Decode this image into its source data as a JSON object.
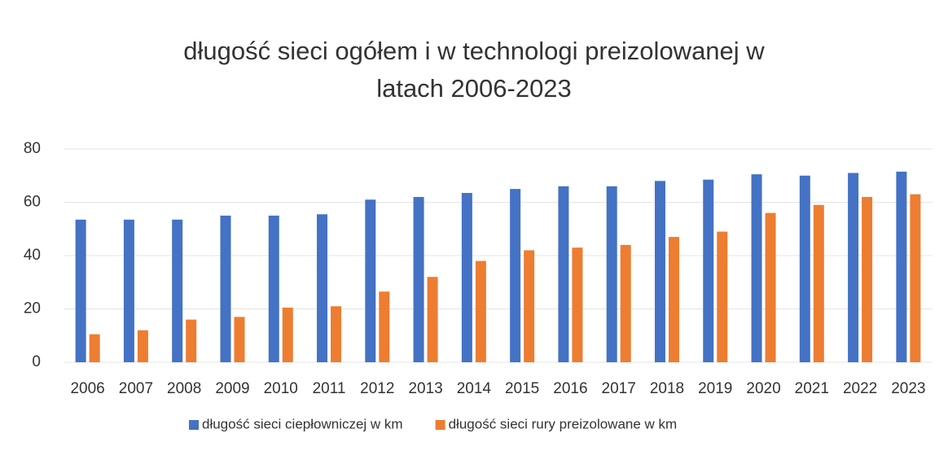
{
  "chart_data": {
    "type": "bar",
    "title": "długość sieci ogółem i w technologi preizolowanej w latach 2006-2023",
    "categories": [
      "2006",
      "2007",
      "2008",
      "2009",
      "2010",
      "2011",
      "2012",
      "2013",
      "2014",
      "2015",
      "2016",
      "2017",
      "2018",
      "2019",
      "2020",
      "2021",
      "2022",
      "2023"
    ],
    "series": [
      {
        "name": "długość sieci ciepłowniczej w km",
        "color": "#4472c4",
        "values": [
          53.5,
          53.5,
          53.5,
          55,
          55,
          55.5,
          61,
          62,
          63.5,
          65,
          66,
          66,
          68,
          68.5,
          70.5,
          70,
          71,
          71.5
        ]
      },
      {
        "name": "długość sieci rury preizolowane w km",
        "color": "#ed7d31",
        "values": [
          10.5,
          12,
          16,
          17,
          20.5,
          21,
          26.5,
          32,
          38,
          42,
          43,
          44,
          47,
          49,
          56,
          59,
          62,
          63
        ]
      }
    ],
    "ylim": [
      0,
      80
    ],
    "yticks": [
      0,
      20,
      40,
      60,
      80
    ],
    "grid": true,
    "legend": "bottom"
  }
}
